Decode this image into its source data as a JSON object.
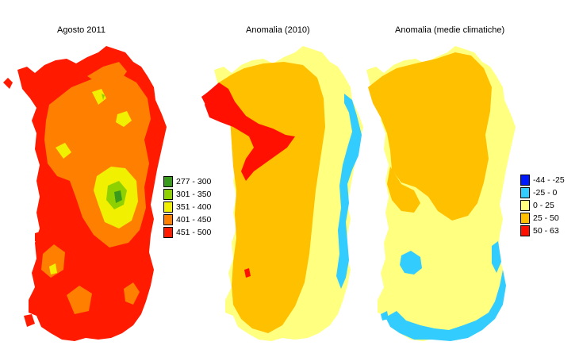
{
  "panels": [
    {
      "title": "Agosto 2011",
      "legend": [
        {
          "label": "277 - 300",
          "color": "#3a9a1c"
        },
        {
          "label": "301 - 350",
          "color": "#8fd000"
        },
        {
          "label": "351 - 400",
          "color": "#f0f000"
        },
        {
          "label": "401 - 450",
          "color": "#ff8000"
        },
        {
          "label": "451 - 500",
          "color": "#ff1a00"
        }
      ]
    },
    {
      "title": "Anomalia (2010)",
      "legend": []
    },
    {
      "title": "Anomalia (medie climatiche)",
      "legend": [
        {
          "label": "-44 - -25",
          "color": "#0018ff"
        },
        {
          "label": "-25 - 0",
          "color": "#33ccff"
        },
        {
          "label": "0 - 25",
          "color": "#ffff80"
        },
        {
          "label": "25 - 50",
          "color": "#ffc000"
        },
        {
          "label": "50 - 63",
          "color": "#ff1000"
        }
      ]
    }
  ]
}
